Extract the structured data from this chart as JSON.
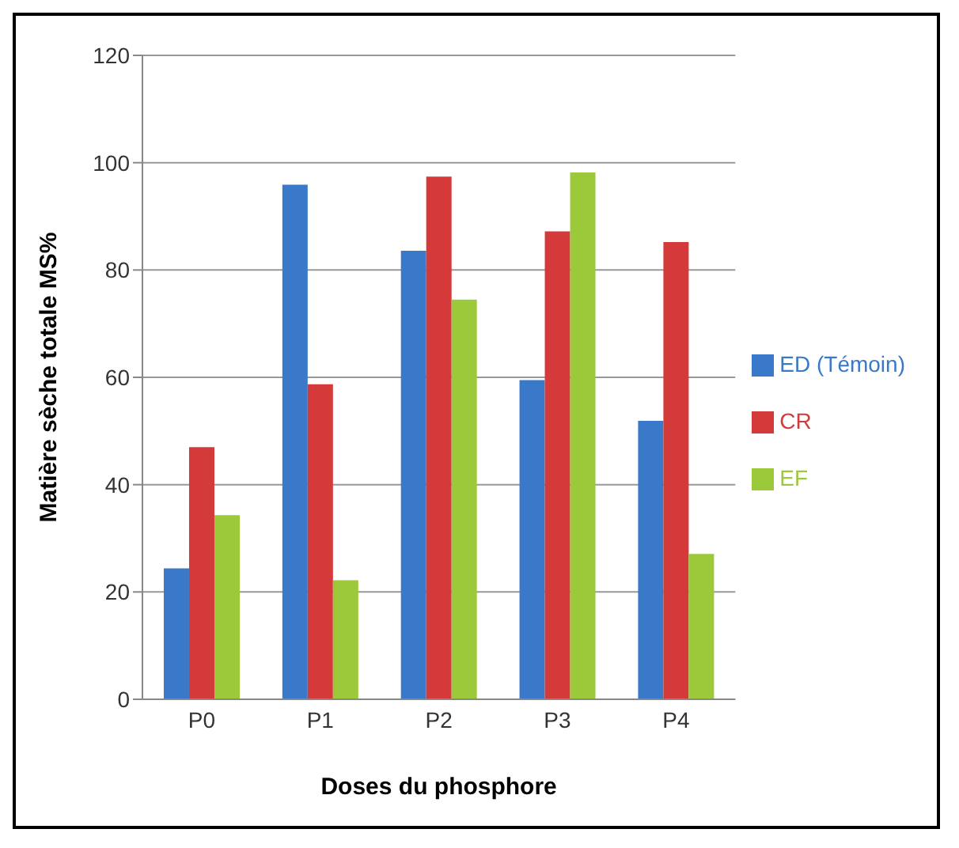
{
  "chart_data": {
    "type": "bar",
    "xlabel": "Doses du phosphore",
    "ylabel": "Matière sèche totale MS%",
    "categories": [
      "P0",
      "P1",
      "P2",
      "P3",
      "P4"
    ],
    "series": [
      {
        "name": "ED (Témoin)",
        "color": "#3a78c9",
        "values": [
          24.4,
          95.9,
          83.6,
          59.5,
          51.9
        ]
      },
      {
        "name": "CR",
        "color": "#d43a3a",
        "values": [
          47,
          58.7,
          97.4,
          87.2,
          85.2
        ]
      },
      {
        "name": "EF",
        "color": "#9cc93a",
        "values": [
          34.3,
          22.2,
          74.5,
          98.2,
          27.1
        ]
      }
    ],
    "ylim": [
      0,
      120
    ],
    "yticks": [
      0,
      20,
      40,
      60,
      80,
      100,
      120
    ],
    "grid": "y",
    "legend": "right"
  }
}
